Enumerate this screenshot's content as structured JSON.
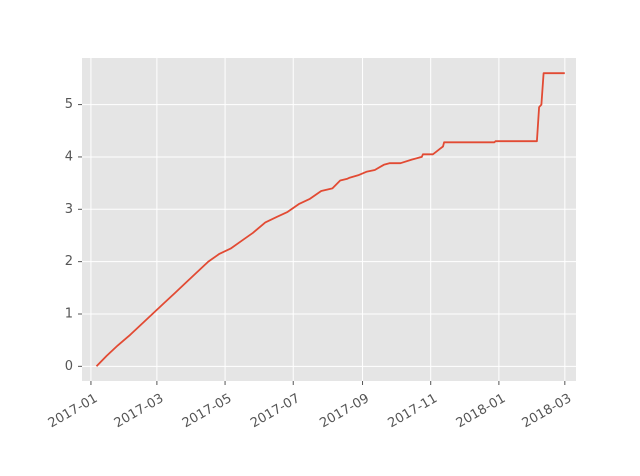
{
  "chart_data": {
    "type": "line",
    "title": "",
    "xlabel": "",
    "ylabel": "",
    "x_is_date": true,
    "xlim": [
      "2016-12-24",
      "2018-03-11"
    ],
    "ylim": [
      -0.28,
      5.89
    ],
    "grid": true,
    "x_ticks": [
      "2017-01-01",
      "2017-03-01",
      "2017-05-01",
      "2017-07-01",
      "2017-09-01",
      "2017-11-01",
      "2018-01-01",
      "2018-03-01"
    ],
    "x_tick_labels": [
      "2017-01",
      "2017-03",
      "2017-05",
      "2017-07",
      "2017-09",
      "2017-11",
      "2018-01",
      "2018-03"
    ],
    "y_ticks": [
      0,
      1,
      2,
      3,
      4,
      5
    ],
    "y_tick_labels": [
      "0",
      "1",
      "2",
      "3",
      "4",
      "5"
    ],
    "colors": {
      "line": "#e24a33",
      "panel": "#e5e5e5",
      "grid": "#ffffff",
      "text": "#555555"
    },
    "series": [
      {
        "x": [
          "2017-01-06",
          "2017-01-15",
          "2017-01-25",
          "2017-02-05",
          "2017-02-15",
          "2017-02-25",
          "2017-03-07",
          "2017-03-17",
          "2017-03-27",
          "2017-04-06",
          "2017-04-16",
          "2017-04-26",
          "2017-05-06",
          "2017-05-16",
          "2017-05-26",
          "2017-06-06",
          "2017-06-16",
          "2017-06-26",
          "2017-07-06",
          "2017-07-16",
          "2017-07-26",
          "2017-08-05",
          "2017-08-12",
          "2017-08-18",
          "2017-08-20",
          "2017-08-28",
          "2017-09-05",
          "2017-09-12",
          "2017-09-20",
          "2017-09-25",
          "2017-10-05",
          "2017-10-15",
          "2017-10-24",
          "2017-10-25",
          "2017-11-03",
          "2017-11-06",
          "2017-11-09",
          "2017-11-12",
          "2017-11-13",
          "2017-12-01",
          "2017-12-28",
          "2017-12-29",
          "2018-01-20",
          "2018-02-04",
          "2018-02-06",
          "2018-02-08",
          "2018-02-10",
          "2018-03-01"
        ],
        "y": [
          0.0,
          0.2,
          0.4,
          0.6,
          0.8,
          1.0,
          1.2,
          1.4,
          1.6,
          1.8,
          2.0,
          2.15,
          2.25,
          2.4,
          2.55,
          2.75,
          2.85,
          2.95,
          3.1,
          3.2,
          3.35,
          3.4,
          3.55,
          3.58,
          3.6,
          3.65,
          3.72,
          3.75,
          3.85,
          3.88,
          3.88,
          3.95,
          4.0,
          4.05,
          4.05,
          4.1,
          4.15,
          4.2,
          4.28,
          4.28,
          4.28,
          4.3,
          4.3,
          4.3,
          4.95,
          5.0,
          5.6,
          5.6
        ]
      }
    ]
  }
}
